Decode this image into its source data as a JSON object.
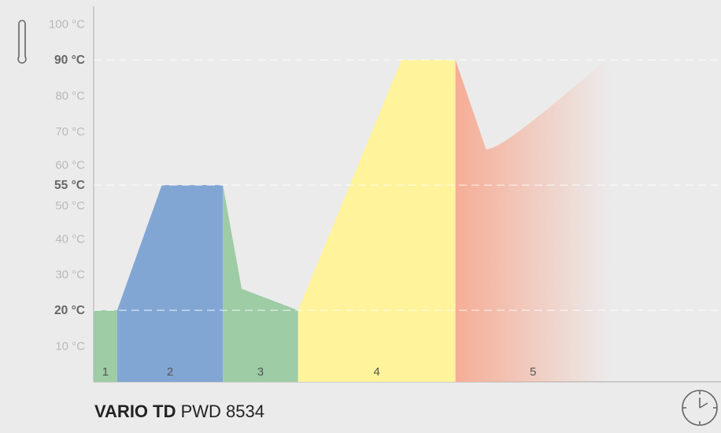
{
  "chart_data": {
    "type": "area",
    "title": "",
    "xlabel": "",
    "ylabel": "",
    "ylim": [
      0,
      105
    ],
    "y_ticks": [
      {
        "value": 10,
        "label": "10 °C",
        "bold": false
      },
      {
        "value": 20,
        "label": "20 °C",
        "bold": true
      },
      {
        "value": 30,
        "label": "30 °C",
        "bold": false
      },
      {
        "value": 40,
        "label": "40 °C",
        "bold": false
      },
      {
        "value": 50,
        "label": "50 °C",
        "bold": false
      },
      {
        "value": 55,
        "label": "55 °C",
        "bold": true
      },
      {
        "value": 60,
        "label": "60 °C",
        "bold": false
      },
      {
        "value": 70,
        "label": "70 °C",
        "bold": false
      },
      {
        "value": 80,
        "label": "80 °C",
        "bold": false
      },
      {
        "value": 90,
        "label": "90 °C",
        "bold": true
      },
      {
        "value": 100,
        "label": "100 °C",
        "bold": false
      }
    ],
    "reference_lines": [
      20,
      55,
      90
    ],
    "phases": [
      {
        "label": "1",
        "color": "#9dcca5",
        "x_range": [
          0,
          1.0
        ],
        "profile": [
          [
            0,
            20
          ],
          [
            1.0,
            20
          ]
        ]
      },
      {
        "label": "2",
        "color": "#82a6d4",
        "x_range": [
          1.0,
          5.5
        ],
        "profile": [
          [
            1.0,
            20
          ],
          [
            2.9,
            55
          ],
          [
            5.5,
            55
          ]
        ]
      },
      {
        "label": "3",
        "color": "#9dcca5",
        "x_range": [
          5.5,
          8.7
        ],
        "profile": [
          [
            5.5,
            55
          ],
          [
            6.3,
            26
          ],
          [
            8.7,
            20
          ]
        ]
      },
      {
        "label": "4",
        "color": "#fff39b",
        "x_range": [
          8.7,
          15.4
        ],
        "profile": [
          [
            8.7,
            20
          ],
          [
            13.1,
            90
          ],
          [
            15.4,
            90
          ]
        ]
      },
      {
        "label": "5",
        "color": "#f6ad96",
        "fade_to": "#ebebeb",
        "x_range": [
          15.4,
          22.0
        ],
        "profile": [
          [
            15.4,
            90
          ],
          [
            16.7,
            65
          ],
          [
            18.2,
            68
          ],
          [
            19.6,
            80
          ],
          [
            21.8,
            90
          ],
          [
            22.0,
            90
          ]
        ]
      }
    ],
    "xlim": [
      0,
      26.7
    ]
  },
  "footer": {
    "brand": "VARIO TD",
    "model": "PWD 8534"
  },
  "icons": {
    "thermometer": "thermometer-icon",
    "clock": "clock-icon"
  }
}
